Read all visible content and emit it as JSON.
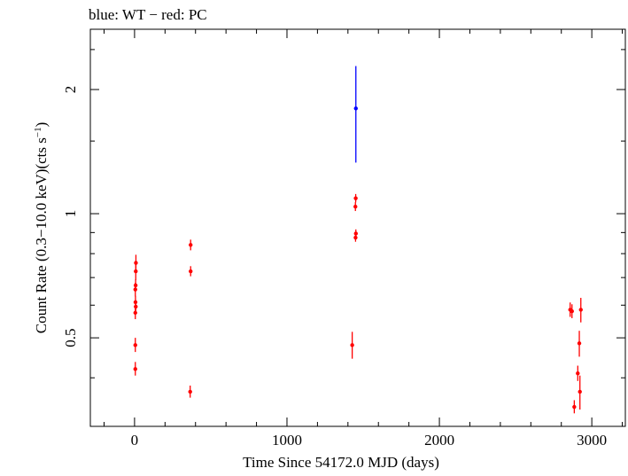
{
  "chart_data": {
    "type": "scatter",
    "title": "blue: WT − red: PC",
    "xlabel": "Time Since 54172.0 MJD (days)",
    "ylabel_main": "Count Rate (0.3−10.0 keV)(cts s",
    "ylabel_sup": "−1",
    "ylabel_end": ")",
    "xlim": [
      -290,
      3220
    ],
    "ylim": [
      0.305,
      2.8
    ],
    "yscale": "log",
    "x_ticks": [
      {
        "value": 0,
        "label": "0"
      },
      {
        "value": 1000,
        "label": "1000"
      },
      {
        "value": 2000,
        "label": "2000"
      },
      {
        "value": 3000,
        "label": "3000"
      }
    ],
    "y_ticks": [
      {
        "value": 0.5,
        "label": "0.5"
      },
      {
        "value": 1,
        "label": "1"
      },
      {
        "value": 2,
        "label": "2"
      }
    ],
    "series": [
      {
        "color": "#0000ff",
        "points": [
          {
            "x": 1452,
            "y": 1.8,
            "ylo": 1.33,
            "yhi": 2.28
          }
        ]
      },
      {
        "color": "#ff0000",
        "points": [
          {
            "x": 5,
            "y": 0.42,
            "ylo": 0.405,
            "yhi": 0.437
          },
          {
            "x": 5,
            "y": 0.48,
            "ylo": 0.462,
            "yhi": 0.5
          },
          {
            "x": 5,
            "y": 0.575,
            "ylo": 0.555,
            "yhi": 0.597
          },
          {
            "x": 8,
            "y": 0.595,
            "ylo": 0.575,
            "yhi": 0.617
          },
          {
            "x": 6,
            "y": 0.61,
            "ylo": 0.59,
            "yhi": 0.632
          },
          {
            "x": 5,
            "y": 0.655,
            "ylo": 0.63,
            "yhi": 0.68
          },
          {
            "x": 7,
            "y": 0.67,
            "ylo": 0.648,
            "yhi": 0.693
          },
          {
            "x": 8,
            "y": 0.725,
            "ylo": 0.69,
            "yhi": 0.76
          },
          {
            "x": 9,
            "y": 0.76,
            "ylo": 0.725,
            "yhi": 0.795
          },
          {
            "x": 365,
            "y": 0.37,
            "ylo": 0.358,
            "yhi": 0.383
          },
          {
            "x": 368,
            "y": 0.725,
            "ylo": 0.705,
            "yhi": 0.746
          },
          {
            "x": 368,
            "y": 0.84,
            "ylo": 0.815,
            "yhi": 0.865
          },
          {
            "x": 1428,
            "y": 0.48,
            "ylo": 0.445,
            "yhi": 0.517
          },
          {
            "x": 1450,
            "y": 0.875,
            "ylo": 0.855,
            "yhi": 0.896
          },
          {
            "x": 1452,
            "y": 0.895,
            "ylo": 0.875,
            "yhi": 0.916
          },
          {
            "x": 1449,
            "y": 1.04,
            "ylo": 1.015,
            "yhi": 1.066
          },
          {
            "x": 1451,
            "y": 1.09,
            "ylo": 1.065,
            "yhi": 1.116
          },
          {
            "x": 2858,
            "y": 0.585,
            "ylo": 0.562,
            "yhi": 0.609
          },
          {
            "x": 2870,
            "y": 0.58,
            "ylo": 0.558,
            "yhi": 0.603
          },
          {
            "x": 2885,
            "y": 0.34,
            "ylo": 0.328,
            "yhi": 0.353
          },
          {
            "x": 2908,
            "y": 0.41,
            "ylo": 0.393,
            "yhi": 0.428
          },
          {
            "x": 2918,
            "y": 0.485,
            "ylo": 0.45,
            "yhi": 0.52
          },
          {
            "x": 2922,
            "y": 0.37,
            "ylo": 0.335,
            "yhi": 0.405
          },
          {
            "x": 2928,
            "y": 0.585,
            "ylo": 0.545,
            "yhi": 0.625
          }
        ]
      }
    ]
  }
}
